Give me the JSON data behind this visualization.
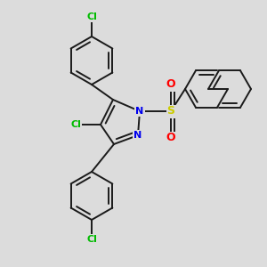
{
  "background_color": "#dcdcdc",
  "bond_color": "#1a1a1a",
  "bond_width": 1.4,
  "atom_colors": {
    "N": "#0000ee",
    "Cl": "#00bb00",
    "S": "#cccc00",
    "O": "#ff0000",
    "C": "#1a1a1a"
  },
  "figsize": [
    3.0,
    3.0
  ],
  "dpi": 100
}
